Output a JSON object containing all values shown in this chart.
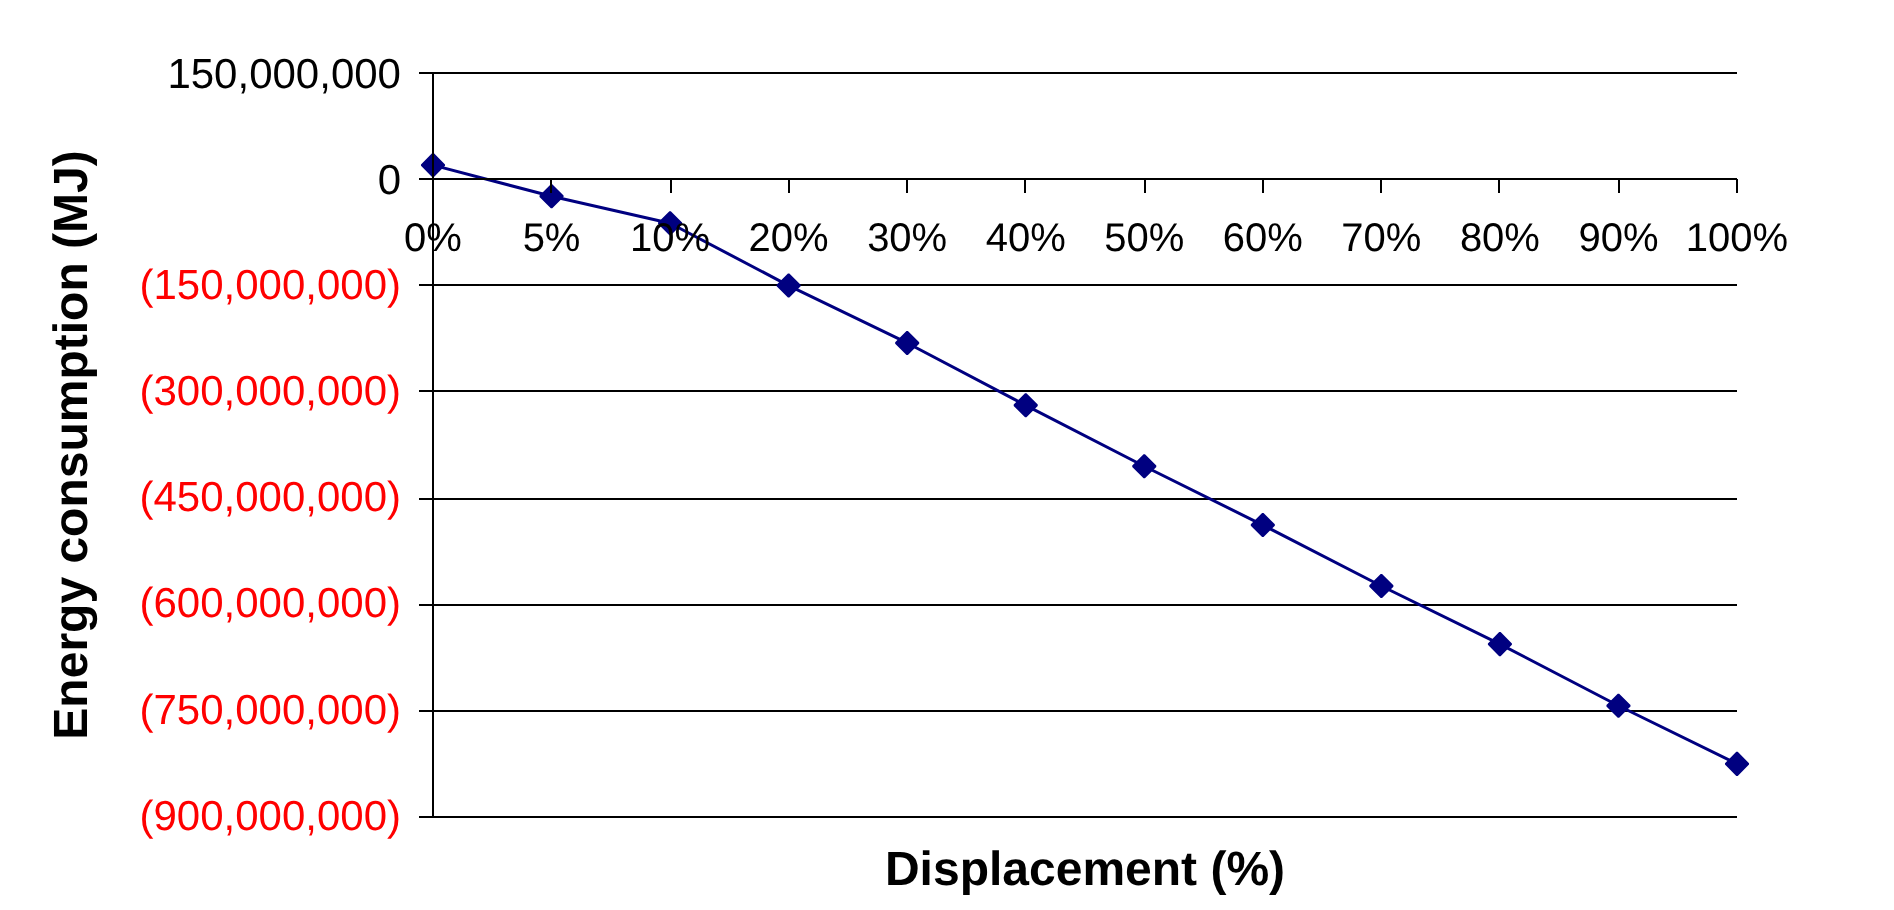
{
  "chart_data": {
    "type": "line",
    "xlabel": "Displacement (%)",
    "ylabel": "Energy consumption (MJ)",
    "categories": [
      "0%",
      "5%",
      "10%",
      "20%",
      "30%",
      "40%",
      "50%",
      "60%",
      "70%",
      "80%",
      "90%",
      "100%"
    ],
    "series": [
      {
        "color": "#000080",
        "values": [
          20000000,
          -24000000,
          -62000000,
          -150000000,
          -231000000,
          -319000000,
          -405000000,
          -488000000,
          -574000000,
          -656000000,
          -743000000,
          -825000000
        ]
      }
    ],
    "ylim": [
      -900000000,
      150000000
    ],
    "yticks": [
      {
        "value": 150000000,
        "label": "150,000,000"
      },
      0,
      {
        "value": -150000000,
        "label": "(150,000,000)"
      },
      {
        "value": -300000000,
        "label": "(300,000,000)"
      },
      {
        "value": -450000000,
        "label": "(450,000,000)"
      },
      {
        "value": -600000000,
        "label": "(600,000,000)"
      },
      {
        "value": -750000000,
        "label": "(750,000,000)"
      },
      {
        "value": -900000000,
        "label": "(900,000,000)"
      }
    ],
    "grid": "y",
    "marker": "diamond",
    "line_style": "solid"
  }
}
